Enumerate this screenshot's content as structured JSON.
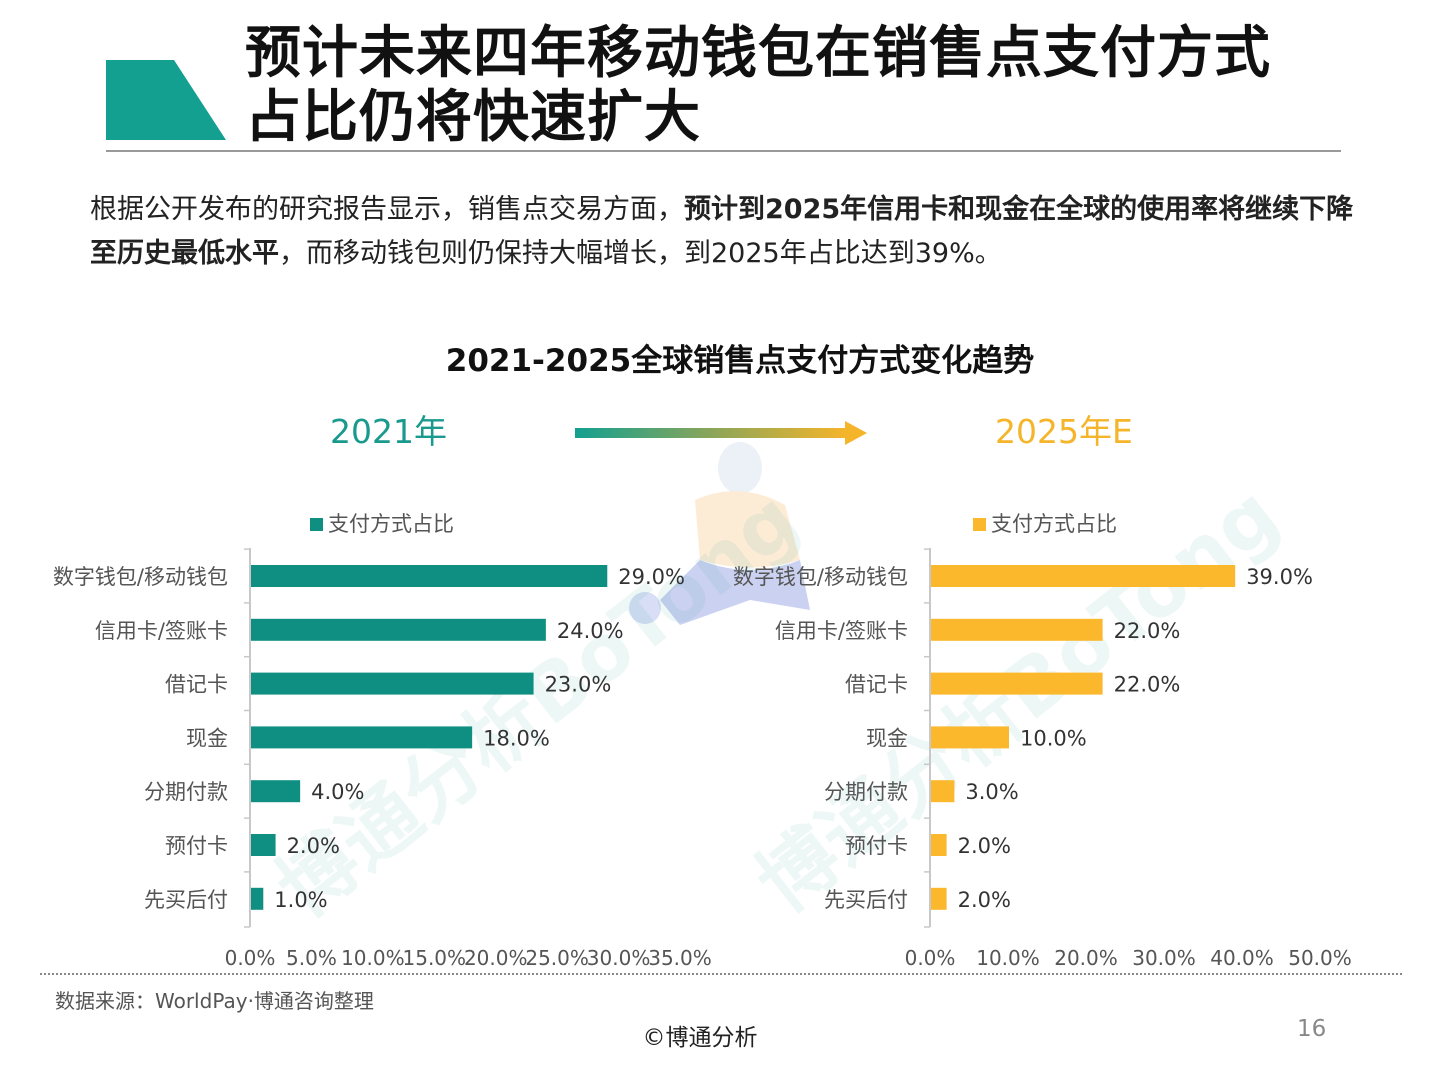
{
  "header": {
    "title_line1": "预计未来四年移动钱包在销售点支付方式",
    "title_line2": "占比仍将快速扩大",
    "accent_color": "#13a090"
  },
  "intro": {
    "part1": "根据公开发布的研究报告显示，销售点交易方面，",
    "bold": "预计到2025年信用卡和现金在全球的使用率将继续下降至历史最低水平",
    "part2": "，而移动钱包则仍保持大幅增长，到2025年占比达到39%。"
  },
  "chart_title": "2021-2025全球销售点支付方式变化趋势",
  "year_left": "2021年",
  "year_right": "2025年E",
  "watermark": "博通分析BoTong",
  "chart_data": [
    {
      "type": "bar",
      "orientation": "horizontal",
      "period": "2021年",
      "legend": "支付方式占比",
      "color": "#0f8f82",
      "categories": [
        "数字钱包/移动钱包",
        "信用卡/签账卡",
        "借记卡",
        "现金",
        "分期付款",
        "预付卡",
        "先买后付"
      ],
      "values": [
        29.0,
        24.0,
        23.0,
        18.0,
        4.0,
        2.0,
        1.0
      ],
      "value_labels": [
        "29.0%",
        "24.0%",
        "23.0%",
        "18.0%",
        "4.0%",
        "2.0%",
        "1.0%"
      ],
      "xlim": [
        0,
        35
      ],
      "ticks": [
        0,
        5,
        10,
        15,
        20,
        25,
        30,
        35
      ],
      "tick_labels": [
        "0.0%",
        "5.0%",
        "10.0%",
        "15.0%",
        "20.0%",
        "25.0%",
        "30.0%",
        "35.0%"
      ]
    },
    {
      "type": "bar",
      "orientation": "horizontal",
      "period": "2025年E",
      "legend": "支付方式占比",
      "color": "#fbb82d",
      "categories": [
        "数字钱包/移动钱包",
        "信用卡/签账卡",
        "借记卡",
        "现金",
        "分期付款",
        "预付卡",
        "先买后付"
      ],
      "values": [
        39.0,
        22.0,
        22.0,
        10.0,
        3.0,
        2.0,
        2.0
      ],
      "value_labels": [
        "39.0%",
        "22.0%",
        "22.0%",
        "10.0%",
        "3.0%",
        "2.0%",
        "2.0%"
      ],
      "xlim": [
        0,
        50
      ],
      "ticks": [
        0,
        10,
        20,
        30,
        40,
        50
      ],
      "tick_labels": [
        "0.0%",
        "10.0%",
        "20.0%",
        "30.0%",
        "40.0%",
        "50.0%"
      ]
    }
  ],
  "source": "数据来源：WorldPay·博通咨询整理",
  "copyright": "©博通分析",
  "page_number": "16"
}
